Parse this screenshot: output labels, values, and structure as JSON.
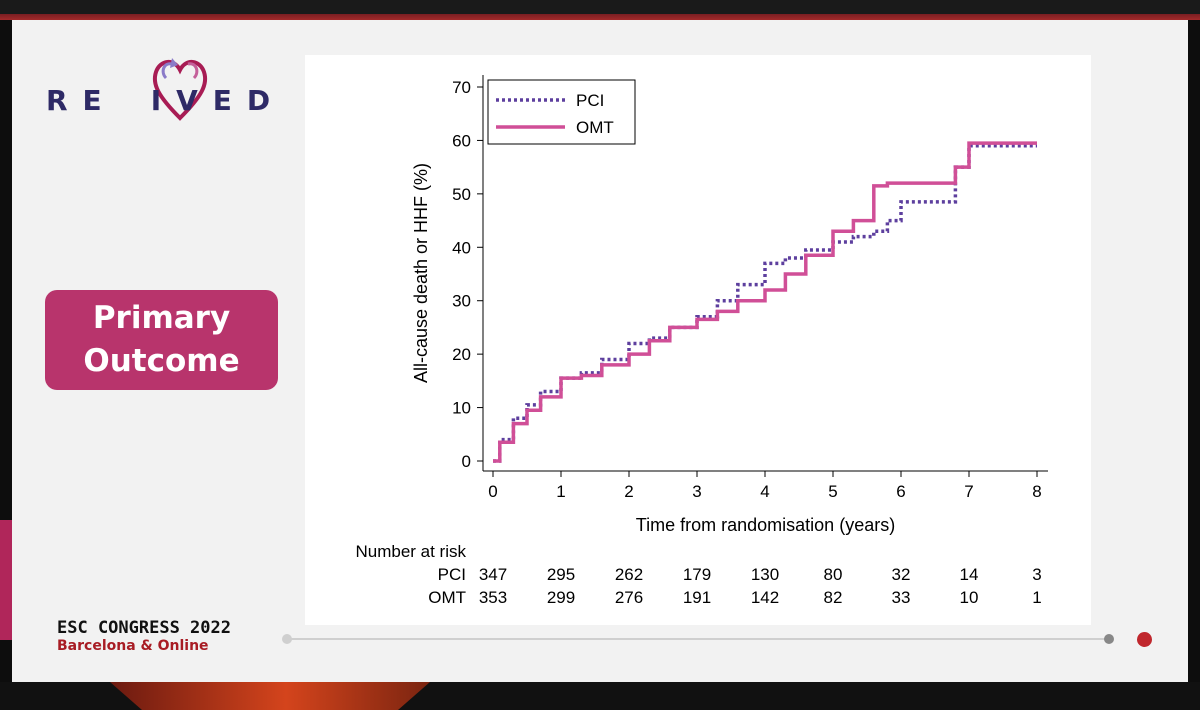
{
  "logo": {
    "text_before": "RE",
    "text_after": "IVED"
  },
  "sidebar": {
    "outcome_line1": "Primary",
    "outcome_line2": "Outcome"
  },
  "footer": {
    "title": "ESC CONGRESS 2022",
    "subtitle": "Barcelona & Online"
  },
  "colors": {
    "pci": "#5d3f9e",
    "omt": "#d04f97",
    "brand_red": "#a81c54",
    "brand_navy": "#2e2a66"
  },
  "chart_data": {
    "type": "line",
    "ylabel": "All-cause death or HHF (%)",
    "xlabel": "Time from randomisation (years)",
    "xlim": [
      0,
      8
    ],
    "ylim": [
      0,
      70
    ],
    "xticks": [
      0,
      1,
      2,
      3,
      4,
      5,
      6,
      7,
      8
    ],
    "yticks": [
      0,
      10,
      20,
      30,
      40,
      50,
      60,
      70
    ],
    "legend_position": "top-left",
    "series": [
      {
        "name": "PCI",
        "style": "dotted",
        "x": [
          0,
          0.1,
          0.3,
          0.5,
          0.7,
          1.0,
          1.3,
          1.6,
          2.0,
          2.3,
          2.6,
          3.0,
          3.3,
          3.6,
          4.0,
          4.3,
          4.6,
          5.0,
          5.3,
          5.6,
          5.8,
          6.0,
          6.3,
          6.6,
          6.8,
          7.0,
          7.5,
          8.0
        ],
        "y": [
          0,
          4,
          8,
          10.5,
          13,
          15.5,
          16.5,
          19,
          22,
          23,
          25,
          27,
          30,
          33,
          37,
          38,
          39.5,
          41,
          42,
          43,
          45,
          48.5,
          48.5,
          48.5,
          55,
          59,
          59,
          59
        ]
      },
      {
        "name": "OMT",
        "style": "solid",
        "x": [
          0,
          0.1,
          0.3,
          0.5,
          0.7,
          1.0,
          1.3,
          1.6,
          2.0,
          2.3,
          2.6,
          3.0,
          3.3,
          3.6,
          4.0,
          4.3,
          4.6,
          5.0,
          5.3,
          5.6,
          5.8,
          6.0,
          6.3,
          6.6,
          6.8,
          7.0,
          7.5,
          8.0
        ],
        "y": [
          0,
          3.5,
          7,
          9.5,
          12,
          15.5,
          16,
          18,
          20,
          22.5,
          25,
          26.5,
          28,
          30,
          32,
          35,
          38.5,
          43,
          45,
          51.5,
          52,
          52,
          52,
          52,
          55,
          59.5,
          59.5,
          59.5
        ]
      }
    ],
    "risk_table": {
      "heading": "Number at risk",
      "rows": [
        {
          "label": "PCI",
          "values": [
            "347",
            "295",
            "262",
            "179",
            "130",
            "80",
            "32",
            "14",
            "3"
          ]
        },
        {
          "label": "OMT",
          "values": [
            "353",
            "299",
            "276",
            "191",
            "142",
            "82",
            "33",
            "10",
            "1"
          ]
        }
      ]
    }
  }
}
